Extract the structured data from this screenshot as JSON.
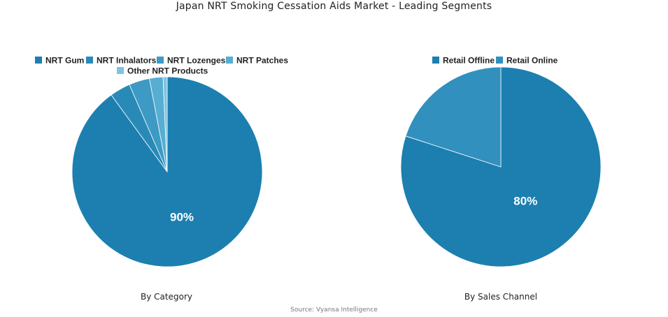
{
  "title": "Japan NRT Smoking Cessation Aids Market - Leading Segments",
  "source": "Source: Vyansa Intelligence",
  "chart_data": [
    {
      "type": "pie",
      "title": "By Category",
      "labels": [
        "NRT Gum",
        "NRT Inhalators",
        "NRT Lozenges",
        "NRT Patches",
        "Other NRT Products"
      ],
      "values": [
        90,
        3.5,
        3.5,
        2.3,
        0.7
      ],
      "colors": [
        "#1c7fb0",
        "#2a8ab7",
        "#3d9ac4",
        "#56aed3",
        "#7ec4e0"
      ],
      "data_labels": [
        "90%",
        "",
        "",
        "",
        ""
      ],
      "legend_position": "top"
    },
    {
      "type": "pie",
      "title": "By Sales Channel",
      "labels": [
        "Retail Offline",
        "Retail Online"
      ],
      "values": [
        80,
        20
      ],
      "colors": [
        "#1c7fb0",
        "#3190be"
      ],
      "data_labels": [
        "80%",
        ""
      ],
      "legend_position": "top"
    }
  ]
}
